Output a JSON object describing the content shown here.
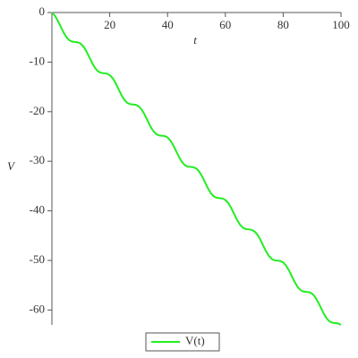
{
  "chart_data": {
    "type": "line",
    "x_label": "t",
    "y_label": "V",
    "x": [
      0,
      1,
      2,
      3,
      4,
      5,
      6,
      7,
      8,
      9,
      10,
      11,
      12,
      13,
      14,
      15,
      16,
      17,
      18,
      19,
      20,
      21,
      22,
      23,
      24,
      25,
      26,
      27,
      28,
      29,
      30,
      31,
      32,
      33,
      34,
      35,
      36,
      37,
      38,
      39,
      40,
      41,
      42,
      43,
      44,
      45,
      46,
      47,
      48,
      49,
      50,
      51,
      52,
      53,
      54,
      55,
      56,
      57,
      58,
      59,
      60,
      61,
      62,
      63,
      64,
      65,
      66,
      67,
      68,
      69,
      70,
      71,
      72,
      73,
      74,
      75,
      76,
      77,
      78,
      79,
      80,
      81,
      82,
      83,
      84,
      85,
      86,
      87,
      88,
      89,
      90,
      91,
      92,
      93,
      94,
      95,
      96,
      97,
      98,
      99,
      100
    ],
    "series": [
      {
        "name": "V(t)",
        "color": "#22ee22",
        "values": [
          0,
          -0.63,
          -1.6,
          -2.79,
          -3.98,
          -4.95,
          -5.58,
          -5.87,
          -5.94,
          -6.01,
          -6.3,
          -6.93,
          -7.9,
          -9.09,
          -10.28,
          -11.25,
          -11.88,
          -12.17,
          -12.24,
          -12.31,
          -12.6,
          -13.23,
          -14.2,
          -15.39,
          -16.58,
          -17.55,
          -18.18,
          -18.47,
          -18.54,
          -18.61,
          -18.9,
          -19.53,
          -20.5,
          -21.69,
          -22.88,
          -23.85,
          -24.48,
          -24.77,
          -24.84,
          -24.91,
          -25.2,
          -25.83,
          -26.8,
          -27.99,
          -29.18,
          -30.15,
          -30.78,
          -31.07,
          -31.14,
          -31.21,
          -31.5,
          -32.13,
          -33.1,
          -34.29,
          -35.48,
          -36.45,
          -37.08,
          -37.37,
          -37.44,
          -37.51,
          -37.8,
          -38.43,
          -39.4,
          -40.59,
          -41.78,
          -42.75,
          -43.38,
          -43.67,
          -43.74,
          -43.81,
          -44.1,
          -44.73,
          -45.7,
          -46.89,
          -48.08,
          -49.05,
          -49.68,
          -49.97,
          -50.04,
          -50.11,
          -50.4,
          -51.03,
          -52.0,
          -53.19,
          -54.38,
          -55.35,
          -55.98,
          -56.27,
          -56.34,
          -56.41,
          -56.7,
          -57.33,
          -58.3,
          -59.49,
          -60.68,
          -61.65,
          -62.28,
          -62.57,
          -62.64,
          -62.71,
          -63.0
        ]
      }
    ],
    "xlim": [
      0,
      100
    ],
    "xticks": [
      20,
      40,
      60,
      80,
      100
    ],
    "ylim": [
      -63,
      0
    ],
    "yticks": [
      0,
      -10,
      -20,
      -30,
      -40,
      -50,
      -60
    ],
    "legend": "bottom"
  }
}
